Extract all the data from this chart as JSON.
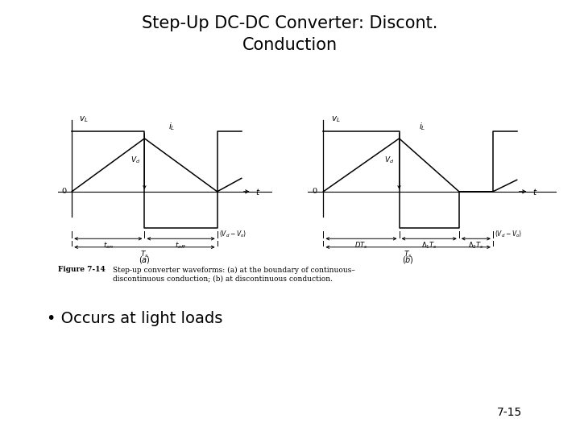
{
  "title_line1": "Step-Up DC-DC Converter: Discont.",
  "title_line2": "Conduction",
  "bullet": "• Occurs at light loads",
  "page_number": "7-15",
  "fig_caption_bold": "Figure 7-14",
  "fig_caption_normal": "  Step-up converter waveforms: (a) at the boundary of continuous–\ndiscontinuous conduction; (b) at discontinuous conduction.",
  "background_color": "#ffffff",
  "line_color": "#000000",
  "plot_a": {
    "label": "(a)",
    "ton": 0.42,
    "toff": 0.42,
    "vpos": 1.0,
    "vneg": -0.6
  },
  "plot_b": {
    "label": "(b)",
    "D": 0.38,
    "D1": 0.3,
    "D2": 0.17,
    "Ts": 1.0,
    "vpos": 1.0,
    "vneg": -0.6
  }
}
